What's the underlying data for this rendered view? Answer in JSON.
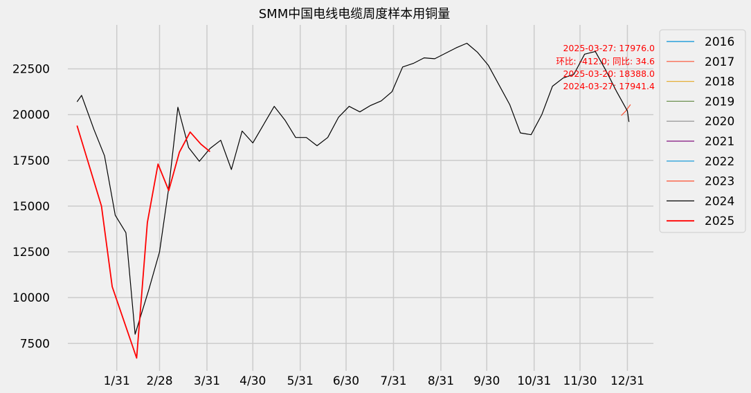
{
  "chart_data": {
    "type": "line",
    "title": "SMM中国电线电缆周度样本用铜量",
    "xlabel": "",
    "ylabel": "",
    "x_tick_labels": [
      "1/31",
      "2/28",
      "3/31",
      "4/30",
      "5/31",
      "6/30",
      "7/31",
      "8/31",
      "9/30",
      "10/31",
      "11/30",
      "12/31"
    ],
    "x_tick_days": [
      31,
      59,
      90,
      120,
      151,
      181,
      212,
      243,
      273,
      304,
      334,
      365
    ],
    "xlim_days": [
      -1,
      382
    ],
    "ylim": [
      6000,
      24900
    ],
    "y_ticks": [
      7500,
      10000,
      12500,
      15000,
      17500,
      20000,
      22500
    ],
    "y_tick_labels": [
      "7500",
      "10000",
      "12500",
      "15000",
      "17500",
      "20000",
      "22500"
    ],
    "grid": true,
    "legend_position": "outside-right",
    "legend": [
      {
        "name": "2016",
        "color": "#008fd5"
      },
      {
        "name": "2017",
        "color": "#fc4f30"
      },
      {
        "name": "2018",
        "color": "#e5ae38"
      },
      {
        "name": "2019",
        "color": "#6d904f"
      },
      {
        "name": "2020",
        "color": "#8b8b8b"
      },
      {
        "name": "2021",
        "color": "#810f7c"
      },
      {
        "name": "2022",
        "color": "#008fd5"
      },
      {
        "name": "2023",
        "color": "#fc4f30"
      },
      {
        "name": "2024",
        "color": "#000000"
      },
      {
        "name": "2025",
        "color": "#ff0000"
      }
    ],
    "series": [
      {
        "name": "2017",
        "color": "#fc4f30",
        "stroke_width": 1.2,
        "points": [
          [
            361,
            19950
          ],
          [
            364,
            20200
          ],
          [
            367,
            20550
          ]
        ]
      },
      {
        "name": "2024",
        "color": "#000000",
        "stroke_width": 1.2,
        "points": [
          [
            5,
            20700
          ],
          [
            8,
            21050
          ],
          [
            16,
            19200
          ],
          [
            23,
            17750
          ],
          [
            30,
            14500
          ],
          [
            37,
            13550
          ],
          [
            43,
            8000
          ],
          [
            52,
            10450
          ],
          [
            59,
            12500
          ],
          [
            65,
            16000
          ],
          [
            71,
            20400
          ],
          [
            78,
            18200
          ],
          [
            85,
            17450
          ],
          [
            92,
            18150
          ],
          [
            99,
            18600
          ],
          [
            106,
            17000
          ],
          [
            113,
            19100
          ],
          [
            120,
            18450
          ],
          [
            134,
            20450
          ],
          [
            141,
            19700
          ],
          [
            148,
            18750
          ],
          [
            155,
            18750
          ],
          [
            162,
            18300
          ],
          [
            169,
            18750
          ],
          [
            176,
            19850
          ],
          [
            183,
            20450
          ],
          [
            190,
            20150
          ],
          [
            197,
            20500
          ],
          [
            204,
            20750
          ],
          [
            211,
            21250
          ],
          [
            218,
            22600
          ],
          [
            225,
            22800
          ],
          [
            232,
            23100
          ],
          [
            239,
            23050
          ],
          [
            246,
            23350
          ],
          [
            253,
            23650
          ],
          [
            260,
            23900
          ],
          [
            267,
            23400
          ],
          [
            274,
            22700
          ],
          [
            288,
            20550
          ],
          [
            295,
            19000
          ],
          [
            302,
            18900
          ],
          [
            309,
            20000
          ],
          [
            316,
            21550
          ],
          [
            323,
            22000
          ],
          [
            330,
            22200
          ],
          [
            337,
            23300
          ],
          [
            344,
            23450
          ],
          [
            351,
            22400
          ],
          [
            358,
            21250
          ],
          [
            365,
            20200
          ],
          [
            366,
            19600
          ]
        ]
      },
      {
        "name": "2025",
        "color": "#ff0000",
        "stroke_width": 1.8,
        "points": [
          [
            5,
            19400
          ],
          [
            21,
            15000
          ],
          [
            28,
            10600
          ],
          [
            44,
            6700
          ],
          [
            51,
            14100
          ],
          [
            58,
            17300
          ],
          [
            65,
            15850
          ],
          [
            72,
            17950
          ],
          [
            79,
            19050
          ],
          [
            86,
            18388
          ],
          [
            92,
            17976
          ]
        ]
      }
    ],
    "annotations": [
      "2025-03-27: 17976.0",
      "环比: -412.0; 同比: 34.6",
      "2025-03-20: 18388.0",
      "2024-03-27: 17941.4"
    ]
  }
}
